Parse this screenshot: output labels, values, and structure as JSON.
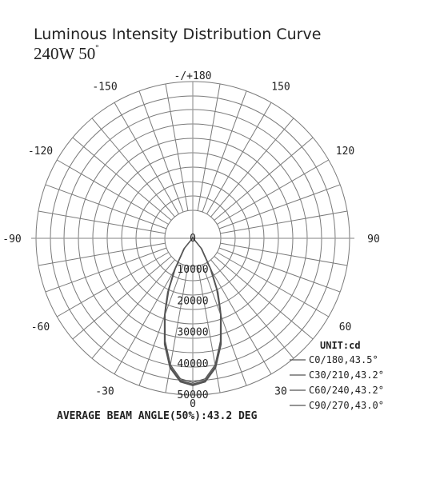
{
  "title": "Luminous Intensity Distribution Curve",
  "subtitle_main": "240W 50",
  "subtitle_sup": "°",
  "unit_label": "UNIT:cd",
  "beam_angle_text": "AVERAGE BEAM ANGLE(50%):43.2 DEG",
  "colors": {
    "grid": "#7a7a7a",
    "axis": "#9a9a9a",
    "curve": "#555555",
    "text": "#222222"
  },
  "chart_data": {
    "type": "polar",
    "title": "Luminous Intensity Distribution Curve",
    "subtitle": "240W 50°",
    "unit": "cd",
    "radial_ticks": [
      0,
      10000,
      20000,
      30000,
      40000,
      50000
    ],
    "radial_range": [
      0,
      50000
    ],
    "angle_labels": [
      "-/+180",
      "150",
      "120",
      "90",
      "60",
      "30",
      "0",
      "-30",
      "-60",
      "-90",
      "-120",
      "-150"
    ],
    "angle_label_angles": [
      180,
      150,
      120,
      90,
      60,
      30,
      0,
      -30,
      -60,
      -90,
      -120,
      -150
    ],
    "series": [
      {
        "name": "C0/180,43.5°",
        "angles": [
          -90,
          -60,
          -40,
          -30,
          -25,
          -21.75,
          -20,
          -15,
          -10,
          -5,
          0,
          5,
          10,
          15,
          20,
          21.75,
          25,
          30,
          40,
          60,
          90
        ],
        "values": [
          0,
          300,
          4500,
          12000,
          19000,
          23500,
          26500,
          35000,
          42000,
          46000,
          47000,
          46000,
          42000,
          35000,
          26500,
          23500,
          19000,
          12000,
          4500,
          300,
          0
        ]
      },
      {
        "name": "C30/210,43.2°",
        "angles": [
          -90,
          -60,
          -40,
          -30,
          -25,
          -21.6,
          -20,
          -15,
          -10,
          -5,
          0,
          5,
          10,
          15,
          20,
          21.6,
          25,
          30,
          40,
          60,
          90
        ],
        "values": [
          0,
          300,
          4300,
          11500,
          18500,
          23200,
          26000,
          34500,
          41500,
          45500,
          46500,
          45500,
          41500,
          34500,
          26000,
          23200,
          18500,
          11500,
          4300,
          300,
          0
        ]
      },
      {
        "name": "C60/240,43.2°",
        "angles": [
          -90,
          -60,
          -40,
          -30,
          -25,
          -21.6,
          -20,
          -15,
          -10,
          -5,
          0,
          5,
          10,
          15,
          20,
          21.6,
          25,
          30,
          40,
          60,
          90
        ],
        "values": [
          0,
          300,
          4400,
          11800,
          18800,
          23400,
          26300,
          34800,
          41800,
          45800,
          46800,
          45800,
          41800,
          34800,
          26300,
          23400,
          18800,
          11800,
          4400,
          300,
          0
        ]
      },
      {
        "name": "C90/270,43.0°",
        "angles": [
          -90,
          -60,
          -40,
          -30,
          -25,
          -21.5,
          -20,
          -15,
          -10,
          -5,
          0,
          5,
          10,
          15,
          20,
          21.5,
          25,
          30,
          40,
          60,
          90
        ],
        "values": [
          0,
          250,
          4000,
          11000,
          18000,
          23000,
          25800,
          34000,
          41000,
          45000,
          46000,
          45000,
          41000,
          34000,
          25800,
          23000,
          18000,
          11000,
          4000,
          250,
          0
        ]
      }
    ],
    "legend_placement": "bottom-right",
    "grid": true
  }
}
